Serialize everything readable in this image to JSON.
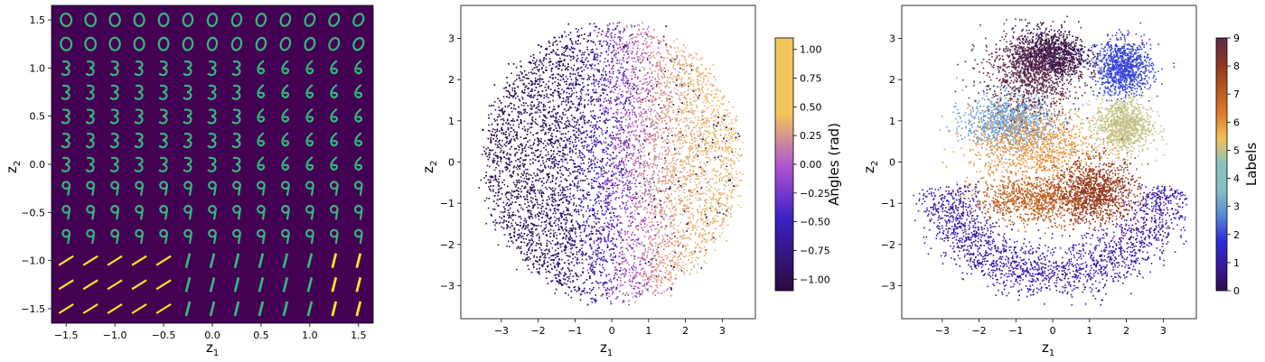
{
  "colors": {
    "panel1_background": "#440154",
    "digit_stroke": "#35b779",
    "digit_highlight": "#fde725",
    "angle_colormap": [
      "#2c0b3d",
      "#3b1fc2",
      "#b257d0",
      "#f2c75a"
    ],
    "label_colormap": [
      "#2d0c45",
      "#3a18a5",
      "#2b2ed8",
      "#5a8ad8",
      "#87c1c2",
      "#88c3c1",
      "#f2c258",
      "#e07b2a",
      "#b7561e",
      "#8e3420",
      "#5e2a48"
    ]
  },
  "chart_data": [
    {
      "type": "image-grid",
      "xlabel": "z",
      "xlabel_sub": "1",
      "ylabel": "z",
      "ylabel_sub": "2",
      "xlim": [
        -1.65,
        1.65
      ],
      "ylim": [
        -1.65,
        1.65
      ],
      "xticks": [
        -1.5,
        -1.0,
        -0.5,
        0.0,
        0.5,
        1.0,
        1.5
      ],
      "xtick_labels": [
        "−1.5",
        "−1.0",
        "−0.5",
        "0.0",
        "0.5",
        "1.0",
        "1.5"
      ],
      "yticks": [
        -1.5,
        -1.0,
        -0.5,
        0.0,
        0.5,
        1.0,
        1.5
      ],
      "ytick_labels": [
        "−1.5",
        "−1.0",
        "−0.5",
        "0.0",
        "0.5",
        "1.0",
        "1.5"
      ],
      "grid_size": 13,
      "cell_range": [
        -1.5,
        1.5
      ],
      "cell_glyphs": "grid of decoded digit images: 0 at top, 3/8 middle-left, 6 middle-right, 9 and 1 bottom"
    },
    {
      "type": "scatter",
      "xlabel": "z",
      "xlabel_sub": "1",
      "ylabel": "z",
      "ylabel_sub": "2",
      "xlim": [
        -4.1,
        3.9
      ],
      "ylim": [
        -3.8,
        3.8
      ],
      "xticks": [
        -3,
        -2,
        -1,
        0,
        1,
        2,
        3
      ],
      "xtick_labels": [
        "−3",
        "−2",
        "−1",
        "0",
        "1",
        "2",
        "3"
      ],
      "yticks": [
        -3,
        -2,
        -1,
        0,
        1,
        2,
        3
      ],
      "ytick_labels": [
        "−3",
        "−2",
        "−1",
        "0",
        "1",
        "2",
        "3"
      ],
      "color_variable": "angle",
      "colorbar": {
        "label": "Angles (rad)",
        "range": [
          -1.1,
          1.1
        ],
        "ticks": [
          1.0,
          0.75,
          0.5,
          0.25,
          0.0,
          -0.25,
          -0.5,
          -0.75,
          -1.0
        ],
        "tick_labels": [
          "1.00",
          "0.75",
          "0.50",
          "0.25",
          "0.00",
          "−0.25",
          "−0.50",
          "−0.75",
          "−1.00"
        ]
      },
      "point_count": 9000,
      "extent": "roughly circular cloud spanning z1 ≈ −3.6–3.6 and z2 ≈ −3.4–3.6; color increases left to right from dark purple (−1) through blue and violet to yellow (+1)"
    },
    {
      "type": "scatter",
      "xlabel": "z",
      "xlabel_sub": "1",
      "ylabel": "z",
      "ylabel_sub": "2",
      "xlim": [
        -4.1,
        3.9
      ],
      "ylim": [
        -3.8,
        3.8
      ],
      "xticks": [
        -3,
        -2,
        -1,
        0,
        1,
        2,
        3
      ],
      "xtick_labels": [
        "−3",
        "−2",
        "−1",
        "0",
        "1",
        "2",
        "3"
      ],
      "yticks": [
        -3,
        -2,
        -1,
        0,
        1,
        2,
        3
      ],
      "ytick_labels": [
        "−3",
        "−2",
        "−1",
        "0",
        "1",
        "2",
        "3"
      ],
      "color_variable": "label",
      "colorbar": {
        "label": "Labels",
        "range": [
          0,
          9
        ],
        "ticks": [
          9,
          8,
          7,
          6,
          5,
          4,
          3,
          2,
          1,
          0
        ],
        "tick_labels": [
          "9",
          "8",
          "7",
          "6",
          "5",
          "4",
          "3",
          "2",
          "1",
          "0"
        ]
      },
      "point_count": 9000,
      "clusters": [
        {
          "label": 0,
          "z1": -0.1,
          "z2": 2.6,
          "sx": 0.9,
          "sy": 0.55
        },
        {
          "label": 1,
          "z1": 0.0,
          "z2": -2.2,
          "sx": 2.2,
          "sy": 0.6,
          "shape": "crescent"
        },
        {
          "label": 2,
          "z1": 1.9,
          "z2": 2.3,
          "sx": 0.7,
          "sy": 0.6
        },
        {
          "label": 3,
          "z1": -1.2,
          "z2": 1.0,
          "sx": 1.1,
          "sy": 0.6
        },
        {
          "label": 5,
          "z1": 1.9,
          "z2": 0.9,
          "sx": 0.7,
          "sy": 0.6
        },
        {
          "label": 6,
          "z1": -0.5,
          "z2": 0.4,
          "sx": 1.6,
          "sy": 0.8
        },
        {
          "label": 7,
          "z1": -0.4,
          "z2": -0.9,
          "sx": 1.6,
          "sy": 0.5
        },
        {
          "label": 8,
          "z1": 1.2,
          "z2": -0.7,
          "sx": 1.0,
          "sy": 0.7
        },
        {
          "label": 9,
          "z1": -0.6,
          "z2": 2.2,
          "sx": 1.2,
          "sy": 0.9
        }
      ]
    }
  ]
}
